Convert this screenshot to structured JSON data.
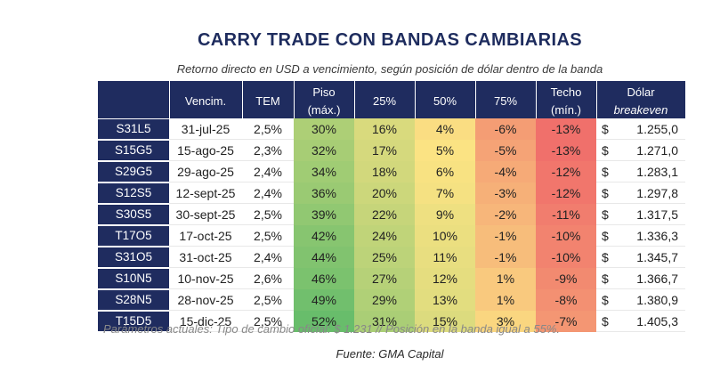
{
  "title": "CARRY TRADE CON BANDAS CAMBIARIAS",
  "subtitle": "Retorno directo en USD a vencimiento, según posición de dólar dentro de la banda",
  "table": {
    "headers": {
      "vencim": "Vencim.",
      "tem": "TEM",
      "piso": "Piso",
      "piso_sub": "(máx.)",
      "p25": "25%",
      "p50": "50%",
      "p75": "75%",
      "techo": "Techo",
      "techo_sub": "(mín.)",
      "dolar": "Dólar",
      "dolar_sub": "breakeven"
    },
    "rows": [
      {
        "ticker": "S31L5",
        "vencim": "31-jul-25",
        "tem": "2,5%",
        "piso": "30%",
        "p25": "16%",
        "p50": "4%",
        "p75": "-6%",
        "techo": "-13%",
        "usd": "$",
        "dolar": "1.255,0"
      },
      {
        "ticker": "S15G5",
        "vencim": "15-ago-25",
        "tem": "2,3%",
        "piso": "32%",
        "p25": "17%",
        "p50": "5%",
        "p75": "-5%",
        "techo": "-13%",
        "usd": "$",
        "dolar": "1.271,0"
      },
      {
        "ticker": "S29G5",
        "vencim": "29-ago-25",
        "tem": "2,4%",
        "piso": "34%",
        "p25": "18%",
        "p50": "6%",
        "p75": "-4%",
        "techo": "-12%",
        "usd": "$",
        "dolar": "1.283,1"
      },
      {
        "ticker": "S12S5",
        "vencim": "12-sept-25",
        "tem": "2,4%",
        "piso": "36%",
        "p25": "20%",
        "p50": "7%",
        "p75": "-3%",
        "techo": "-12%",
        "usd": "$",
        "dolar": "1.297,8"
      },
      {
        "ticker": "S30S5",
        "vencim": "30-sept-25",
        "tem": "2,5%",
        "piso": "39%",
        "p25": "22%",
        "p50": "9%",
        "p75": "-2%",
        "techo": "-11%",
        "usd": "$",
        "dolar": "1.317,5"
      },
      {
        "ticker": "T17O5",
        "vencim": "17-oct-25",
        "tem": "2,5%",
        "piso": "42%",
        "p25": "24%",
        "p50": "10%",
        "p75": "-1%",
        "techo": "-10%",
        "usd": "$",
        "dolar": "1.336,3"
      },
      {
        "ticker": "S31O5",
        "vencim": "31-oct-25",
        "tem": "2,4%",
        "piso": "44%",
        "p25": "25%",
        "p50": "11%",
        "p75": "-1%",
        "techo": "-10%",
        "usd": "$",
        "dolar": "1.345,7"
      },
      {
        "ticker": "S10N5",
        "vencim": "10-nov-25",
        "tem": "2,6%",
        "piso": "46%",
        "p25": "27%",
        "p50": "12%",
        "p75": "1%",
        "techo": "-9%",
        "usd": "$",
        "dolar": "1.366,7"
      },
      {
        "ticker": "S28N5",
        "vencim": "28-nov-25",
        "tem": "2,5%",
        "piso": "49%",
        "p25": "29%",
        "p50": "13%",
        "p75": "1%",
        "techo": "-8%",
        "usd": "$",
        "dolar": "1.380,9"
      },
      {
        "ticker": "T15D5",
        "vencim": "15-dic-25",
        "tem": "2,5%",
        "piso": "52%",
        "p25": "31%",
        "p50": "15%",
        "p75": "3%",
        "techo": "-7%",
        "usd": "$",
        "dolar": "1.405,3"
      }
    ]
  },
  "params": "Parámetros actuales: Tipo de cambio oficial: $ 1.231 //  Posición en la banda igual a 55%.",
  "source": "Fuente: GMA Capital",
  "colors": {
    "header": "#1f2c5f",
    "heat_low": "#f0706b",
    "heat_mid": "#fbe383",
    "heat_high": "#68bd6b"
  }
}
